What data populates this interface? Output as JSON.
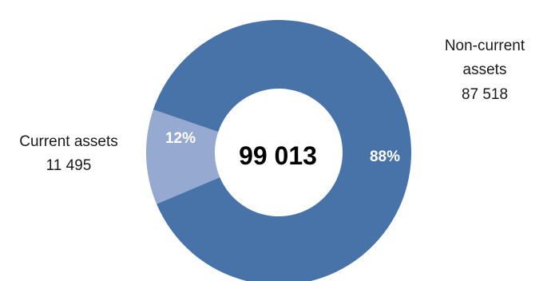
{
  "chart_data": {
    "type": "pie",
    "variant": "donut",
    "center_label": "99 013",
    "categories": [
      "Current assets",
      "Non-current assets"
    ],
    "values": [
      11495,
      87518
    ],
    "value_labels": [
      "11 495",
      "87 518"
    ],
    "percent_labels": [
      "12%",
      "88%"
    ],
    "colors": [
      "#96aad1",
      "#4873a8"
    ],
    "legend": "none"
  }
}
